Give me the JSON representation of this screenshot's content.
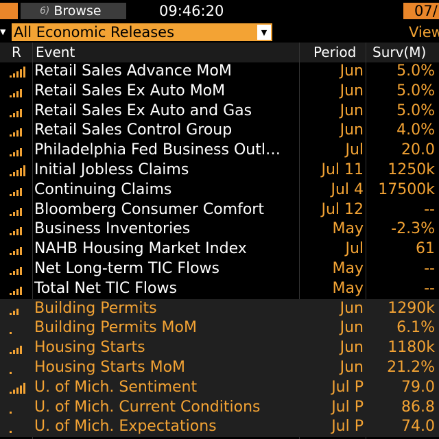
{
  "topbar": {
    "browse_num": "6)",
    "browse_label": "Browse",
    "time": "09:46:20",
    "date": "07/"
  },
  "filter": {
    "value": "All Economic Releases",
    "view_label": "View"
  },
  "columns": {
    "r": "R",
    "event": "Event",
    "period": "Period",
    "surv": "Surv(M)"
  },
  "colors": {
    "accent": "#f3a334",
    "title_orange": "#e9862a",
    "row_shade": "#202020"
  },
  "rows": [
    {
      "event": "Retail Sales Advance MoM",
      "period": "Jun",
      "surv": "5.0%",
      "relevance": 5,
      "orange": false
    },
    {
      "event": "Retail Sales Ex Auto MoM",
      "period": "Jun",
      "surv": "5.0%",
      "relevance": 4,
      "orange": false
    },
    {
      "event": "Retail Sales Ex Auto and Gas",
      "period": "Jun",
      "surv": "5.0%",
      "relevance": 4,
      "orange": false
    },
    {
      "event": "Retail Sales Control Group",
      "period": "Jun",
      "surv": "4.0%",
      "relevance": 4,
      "orange": false
    },
    {
      "event": "Philadelphia Fed Business Outl…",
      "period": "Jul",
      "surv": "20.0",
      "relevance": 4,
      "orange": false
    },
    {
      "event": "Initial Jobless Claims",
      "period": "Jul 11",
      "surv": "1250k",
      "relevance": 5,
      "orange": false
    },
    {
      "event": "Continuing Claims",
      "period": "Jul 4",
      "surv": "17500k",
      "relevance": 4,
      "orange": false
    },
    {
      "event": "Bloomberg Consumer Comfort",
      "period": "Jul 12",
      "surv": "--",
      "relevance": 4,
      "orange": false
    },
    {
      "event": "Business Inventories",
      "period": "May",
      "surv": "-2.3%",
      "relevance": 4,
      "orange": false
    },
    {
      "event": "NAHB Housing Market Index",
      "period": "Jul",
      "surv": "61",
      "relevance": 4,
      "orange": false
    },
    {
      "event": "Net Long-term TIC Flows",
      "period": "May",
      "surv": "--",
      "relevance": 4,
      "orange": false
    },
    {
      "event": "Total Net TIC Flows",
      "period": "May",
      "surv": "--",
      "relevance": 4,
      "orange": false
    },
    {
      "event": "Building Permits",
      "period": "Jun",
      "surv": "1290k",
      "relevance": 3,
      "orange": true
    },
    {
      "event": "Building Permits MoM",
      "period": "Jun",
      "surv": "6.1%",
      "relevance": 1,
      "orange": true
    },
    {
      "event": "Housing Starts",
      "period": "Jun",
      "surv": "1180k",
      "relevance": 4,
      "orange": true
    },
    {
      "event": "Housing Starts MoM",
      "period": "Jun",
      "surv": "21.2%",
      "relevance": 1,
      "orange": true
    },
    {
      "event": "U. of Mich. Sentiment",
      "period": "Jul P",
      "surv": "79.0",
      "relevance": 5,
      "orange": true
    },
    {
      "event": "U. of Mich. Current Conditions",
      "period": "Jul P",
      "surv": "86.8",
      "relevance": 1,
      "orange": true
    },
    {
      "event": "U. of Mich. Expectations",
      "period": "Jul P",
      "surv": "74.0",
      "relevance": 1,
      "orange": true
    }
  ]
}
